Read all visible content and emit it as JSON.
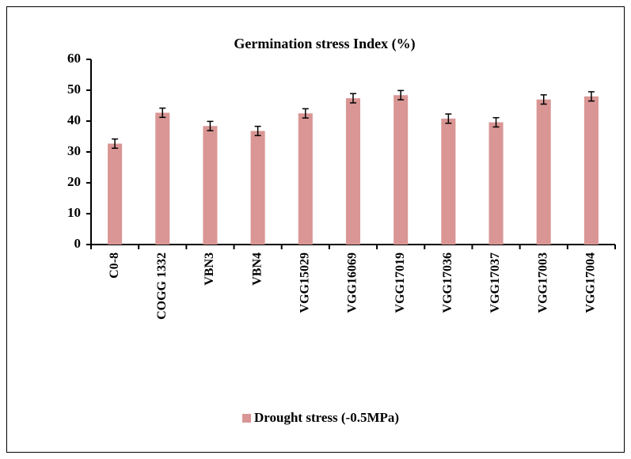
{
  "chart_data": {
    "type": "bar",
    "title": "Germination stress Index (%)",
    "categories": [
      "C0-8",
      "COGG 1332",
      "VBN3",
      "VBN4",
      "VGG15029",
      "VGG16069",
      "VGG17019",
      "VGG17036",
      "VGG17037",
      "VGG17003",
      "VGG17004"
    ],
    "series": [
      {
        "name": "Drought stress (-0.5MPa)",
        "color": "#d99694",
        "values": [
          32.7,
          42.7,
          38.4,
          36.8,
          42.5,
          47.4,
          48.4,
          40.8,
          39.6,
          47.0,
          48.0
        ],
        "errors": [
          1.5,
          1.5,
          1.5,
          1.5,
          1.5,
          1.5,
          1.5,
          1.5,
          1.5,
          1.5,
          1.5
        ]
      }
    ],
    "ylim": [
      0,
      60
    ],
    "yticks": [
      0,
      10,
      20,
      30,
      40,
      50,
      60
    ],
    "grid": false,
    "legend": "bottom"
  }
}
